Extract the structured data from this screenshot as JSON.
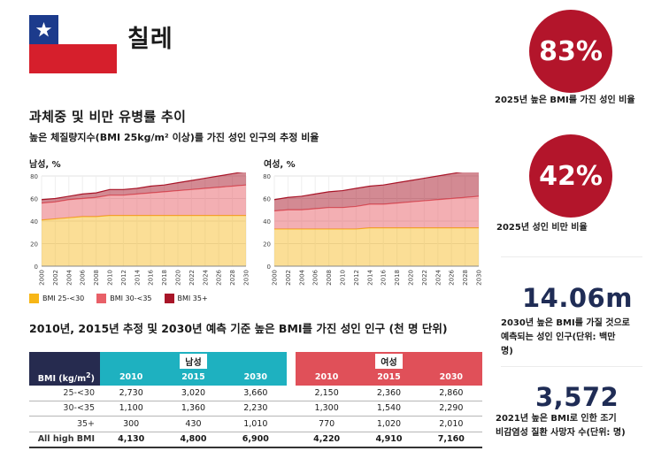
{
  "header": {
    "country": "칠레",
    "flag_colors": {
      "blue": "#1c3b8c",
      "white": "#ffffff",
      "red": "#d61f2c"
    }
  },
  "section1": {
    "title": "과체중 및 비만 유병률 추이",
    "subtitle": "높은 체질량지수(BMI 25kg/m² 이상)를 가진 성인 인구의 추정 비율"
  },
  "legend": [
    {
      "label": "BMI 25-<30",
      "color": "#f7b617"
    },
    {
      "label": "BMI 30-<35",
      "color": "#e86068"
    },
    {
      "label": "BMI 35+",
      "color": "#a81528"
    }
  ],
  "chart_data": [
    {
      "type": "area",
      "title": "남성, %",
      "x": [
        "2000",
        "2002",
        "2004",
        "2006",
        "2008",
        "2010",
        "2012",
        "2014",
        "2016",
        "2018",
        "2020",
        "2022",
        "2024",
        "2026",
        "2028",
        "2030"
      ],
      "ylim": [
        0,
        80
      ],
      "yticks": [
        "0",
        "20",
        "40",
        "60",
        "80"
      ],
      "stacked": true,
      "series": [
        {
          "name": "BMI 25-<30",
          "values": [
            41,
            42,
            43,
            44,
            44,
            45,
            45,
            45,
            45,
            45,
            45,
            45,
            45,
            45,
            45,
            45
          ]
        },
        {
          "name": "BMI 30-<35",
          "values": [
            15,
            15,
            16,
            16,
            17,
            18,
            18,
            19,
            20,
            21,
            22,
            23,
            24,
            25,
            26,
            27
          ]
        },
        {
          "name": "BMI 35+",
          "values": [
            3,
            3,
            3,
            4,
            4,
            5,
            5,
            5,
            6,
            6,
            7,
            8,
            9,
            10,
            11,
            12
          ]
        }
      ]
    },
    {
      "type": "area",
      "title": "여성, %",
      "x": [
        "2000",
        "2002",
        "2004",
        "2006",
        "2008",
        "2010",
        "2012",
        "2014",
        "2016",
        "2018",
        "2020",
        "2022",
        "2024",
        "2026",
        "2028",
        "2030"
      ],
      "ylim": [
        0,
        80
      ],
      "yticks": [
        "0",
        "20",
        "40",
        "60",
        "80"
      ],
      "stacked": true,
      "series": [
        {
          "name": "BMI 25-<30",
          "values": [
            33,
            33,
            33,
            33,
            33,
            33,
            33,
            34,
            34,
            34,
            34,
            34,
            34,
            34,
            34,
            34
          ]
        },
        {
          "name": "BMI 30-<35",
          "values": [
            16,
            17,
            17,
            18,
            19,
            19,
            20,
            21,
            21,
            22,
            23,
            24,
            25,
            26,
            27,
            28
          ]
        },
        {
          "name": "BMI 35+",
          "values": [
            10,
            11,
            12,
            13,
            14,
            15,
            16,
            16,
            17,
            18,
            19,
            20,
            21,
            22,
            23,
            24
          ]
        }
      ]
    }
  ],
  "table": {
    "title": "2010년, 2015년 추정 및 2030년 예측 기준 높은 BMI를 가진 성인 인구 (천 명 단위)",
    "row_header": "BMI (kg/m²)",
    "group_male": "남성",
    "group_female": "여성",
    "years": [
      "2010",
      "2015",
      "2030",
      "2010",
      "2015",
      "2030"
    ],
    "rows": [
      {
        "label": "25-<30",
        "values": [
          "2,730",
          "3,020",
          "3,660",
          "2,150",
          "2,360",
          "2,860"
        ]
      },
      {
        "label": "30-<35",
        "values": [
          "1,100",
          "1,360",
          "2,230",
          "1,300",
          "1,540",
          "2,290"
        ]
      },
      {
        "label": "35+",
        "values": [
          "300",
          "430",
          "1,010",
          "770",
          "1,020",
          "2,010"
        ]
      },
      {
        "label": "All high BMI",
        "values": [
          "4,130",
          "4,800",
          "6,900",
          "4,220",
          "4,910",
          "7,160"
        ]
      }
    ]
  },
  "stats": {
    "high_bmi_pct": "83%",
    "high_bmi_caption": "2025년 높은 BMI를 가진 성인 비율",
    "obesity_pct": "42%",
    "obesity_caption": "2025년 성인 비만 비율",
    "projected": "14.06m",
    "projected_caption": [
      "2030년 높은 BMI를 가질 것으로",
      "예측되는 성인 인구(단위: 백만",
      "명)"
    ],
    "deaths": "3,572",
    "deaths_caption": [
      "2021년 높은 BMI로 인한 조기",
      "비감염성 질환 사망자 수(단위: 명)"
    ]
  }
}
